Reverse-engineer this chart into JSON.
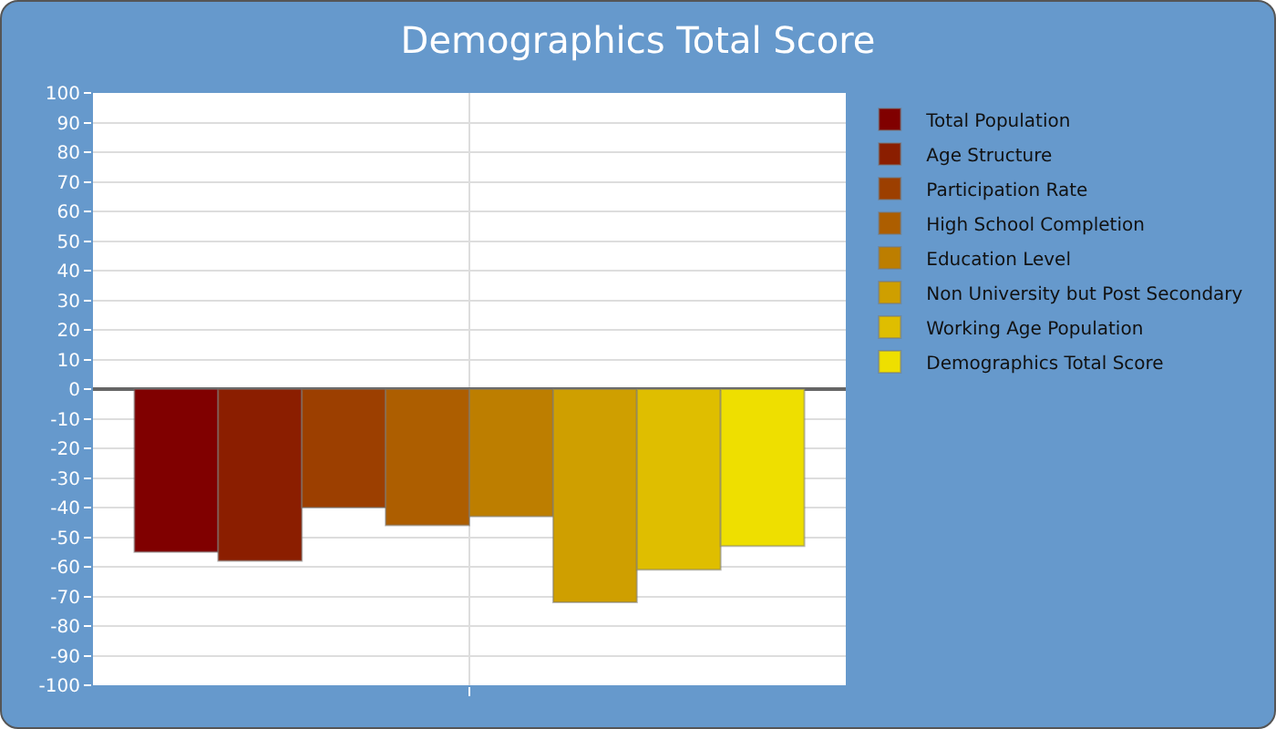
{
  "chart_data": {
    "type": "bar",
    "title": "Demographics Total Score",
    "categories": [
      null
    ],
    "series": [
      {
        "name": "Total Population",
        "color": "#800000",
        "values": [
          -55
        ]
      },
      {
        "name": "Age Structure",
        "color": "#8b1e00",
        "values": [
          -58
        ]
      },
      {
        "name": "Participation Rate",
        "color": "#9c3f00",
        "values": [
          -40
        ]
      },
      {
        "name": "High School Completion",
        "color": "#ad5e00",
        "values": [
          -46
        ]
      },
      {
        "name": "Education Level",
        "color": "#bd7e00",
        "values": [
          -43
        ]
      },
      {
        "name": "Non University but Post Secondary",
        "color": "#cf9f00",
        "values": [
          -72
        ]
      },
      {
        "name": "Working Age Population",
        "color": "#dfbe00",
        "values": [
          -61
        ]
      },
      {
        "name": "Demographics Total Score",
        "color": "#eedf00",
        "values": [
          -53
        ]
      }
    ],
    "ylim": [
      -100,
      100
    ],
    "yticks": [
      -100,
      -90,
      -80,
      -70,
      -60,
      -50,
      -40,
      -30,
      -20,
      -10,
      0,
      10,
      20,
      30,
      40,
      50,
      60,
      70,
      80,
      90,
      100
    ],
    "grid": true,
    "legend": "top right"
  }
}
